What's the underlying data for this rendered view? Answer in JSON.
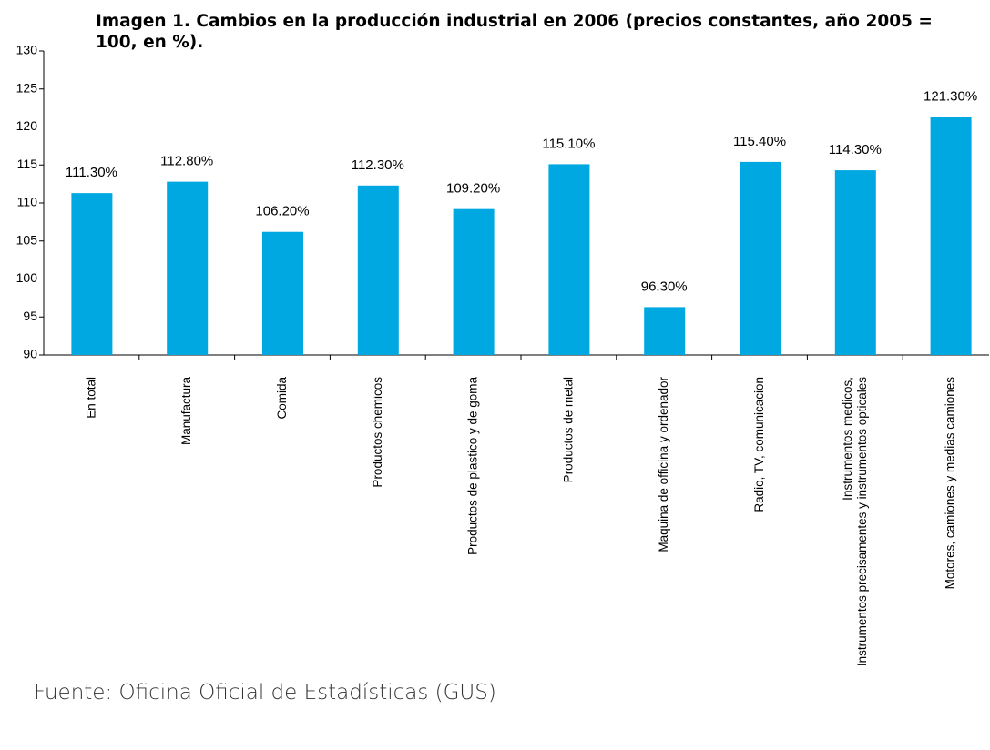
{
  "chart_data": {
    "type": "bar",
    "title": "Imagen 1. Cambios en la producción industrial en 2006 (precios constantes, año 2005 = 100, en %).",
    "categories": [
      "En total",
      "Manufactura",
      "Comida",
      "Productos chemicos",
      "Productos de plastico y de goma",
      "Productos de metal",
      "Maquina de officina y ordenador",
      "Radio, TV, comunicacion",
      "Instrumentos medicos,\nInstrumentos precisamentes y instrumentos opticales",
      "Motores, camiones y medias camiones"
    ],
    "values": [
      111.3,
      112.8,
      106.2,
      112.3,
      109.2,
      115.1,
      96.3,
      115.4,
      114.3,
      121.3
    ],
    "value_labels": [
      "111.30%",
      "112.80%",
      "106.20%",
      "112.30%",
      "109.20%",
      "115.10%",
      "96.30%",
      "115.40%",
      "114.30%",
      "121.30%"
    ],
    "color": "#00a8e1",
    "ylim": [
      90,
      130
    ],
    "yticks": [
      90,
      95,
      100,
      105,
      110,
      115,
      120,
      125,
      130
    ],
    "source": "Fuente: Oficina Oficial de Estadísticas (GUS)"
  }
}
